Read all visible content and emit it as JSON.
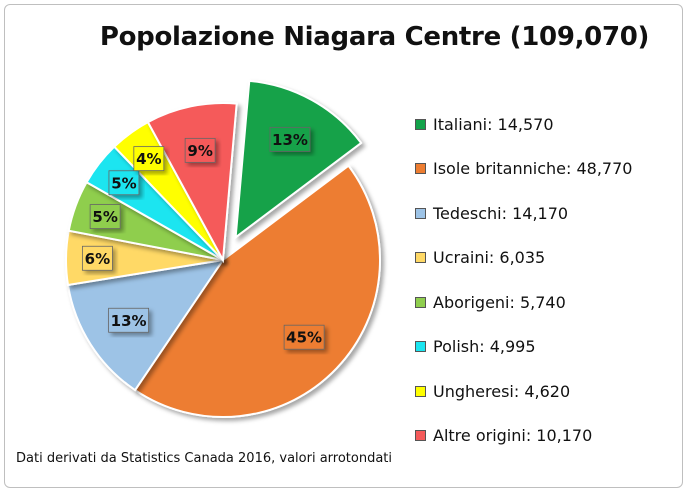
{
  "chart_data": {
    "type": "pie",
    "title": "Popolazione Niagara Centre (109,070)",
    "slices": [
      {
        "name": "Italiani",
        "value": 14570,
        "legend_label": "Italiani: 14,570",
        "label": "13%",
        "color": "#13a24a",
        "exploded": true
      },
      {
        "name": "Isole britanniche",
        "value": 48770,
        "legend_label": "Isole britanniche: 48,770",
        "label": "45%",
        "color": "#ed7d31",
        "exploded": false
      },
      {
        "name": "Tedeschi",
        "value": 14170,
        "legend_label": "Tedeschi: 14,170",
        "label": "13%",
        "color": "#9dc3e6",
        "exploded": false
      },
      {
        "name": "Ucraini",
        "value": 6035,
        "legend_label": "Ucraini: 6,035",
        "label": "6%",
        "color": "#ffd966",
        "exploded": false
      },
      {
        "name": "Aborigeni",
        "value": 5740,
        "legend_label": "Aborigeni: 5,740",
        "label": "5%",
        "color": "#8fce4e",
        "exploded": false
      },
      {
        "name": "Polish",
        "value": 4995,
        "legend_label": "Polish: 4,995",
        "label": "5%",
        "color": "#1be5f0",
        "exploded": false
      },
      {
        "name": "Ungheresi",
        "value": 4620,
        "legend_label": "Ungheresi: 4,620",
        "label": "4%",
        "color": "#ffff00",
        "exploded": false
      },
      {
        "name": "Altre origini",
        "value": 10170,
        "legend_label": "Altre origini: 10,170",
        "label": "9%",
        "color": "#f55a5a",
        "exploded": false
      }
    ],
    "legend_position": "right",
    "note": "Dati derivati da Statistics Canada 2016, valori arrotondati"
  }
}
